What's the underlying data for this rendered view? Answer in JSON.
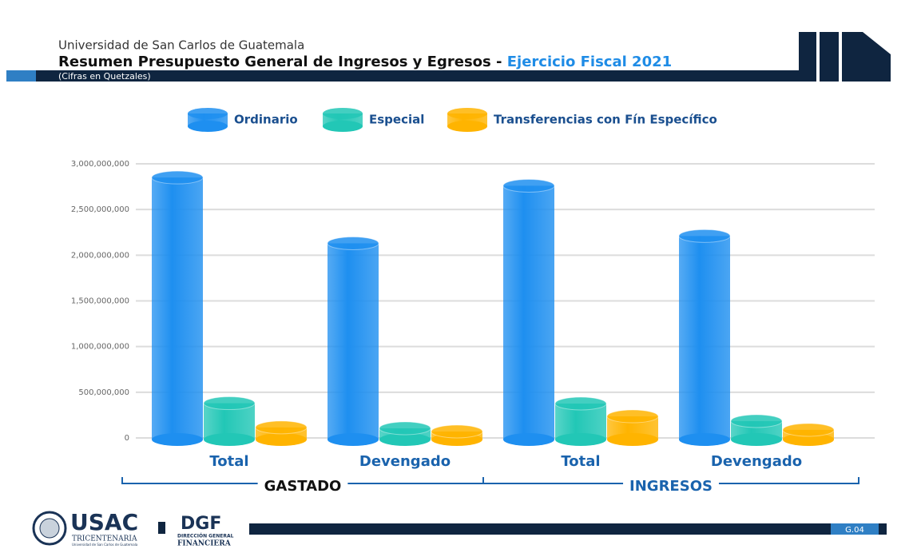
{
  "header": {
    "institution": "Universidad de San Carlos de Guatemala",
    "title": "Resumen Presupuesto General de Ingresos y Egresos - ",
    "title_highlight": "Ejercicio Fiscal 2021",
    "subtitle": "(Cifras en Quetzales)"
  },
  "footer": {
    "usac": "USAC",
    "tricentenaria": "TRICENTENARIA",
    "usac_sub": "Universidad de San Carlos de Guatemala",
    "dgf": "DGF",
    "dgf_sub": "DIRECCIÓN GENERAL",
    "dgf_sub2": "FINANCIERA",
    "page": "G.04"
  },
  "chart_data": {
    "type": "bar",
    "categories": [
      "Total",
      "Devengado",
      "Total",
      "Devengado"
    ],
    "groups": [
      {
        "label": "GASTADO",
        "span": [
          0,
          1
        ]
      },
      {
        "label": "INGRESOS",
        "span": [
          2,
          3
        ]
      }
    ],
    "series": [
      {
        "name": "Ordinario",
        "color": "#1e8ff0",
        "values": [
          2850000000,
          2130000000,
          2760000000,
          2210000000
        ]
      },
      {
        "name": "Especial",
        "color": "#22c7b6",
        "values": [
          380000000,
          105000000,
          376000000,
          184000000
        ]
      },
      {
        "name": "Transferencias con Fín Específico",
        "color": "#ffb400",
        "values": [
          115000000,
          70000000,
          236000000,
          88000000
        ]
      }
    ],
    "ylim": [
      0,
      3000000000
    ],
    "yticks": [
      0,
      {
        "value": 500000000,
        "label": "500,000,000"
      },
      {
        "value": 1000000000,
        "label": "1,000,000,000"
      },
      {
        "value": 1500000000,
        "label": "1,500,000,000"
      },
      {
        "value": 2000000000,
        "label": "2,000,000,000"
      },
      {
        "value": 2500000000,
        "label": "2,500,000,000"
      },
      {
        "value": 3000000000,
        "label": "3,000,000,000"
      }
    ],
    "grid": true
  }
}
